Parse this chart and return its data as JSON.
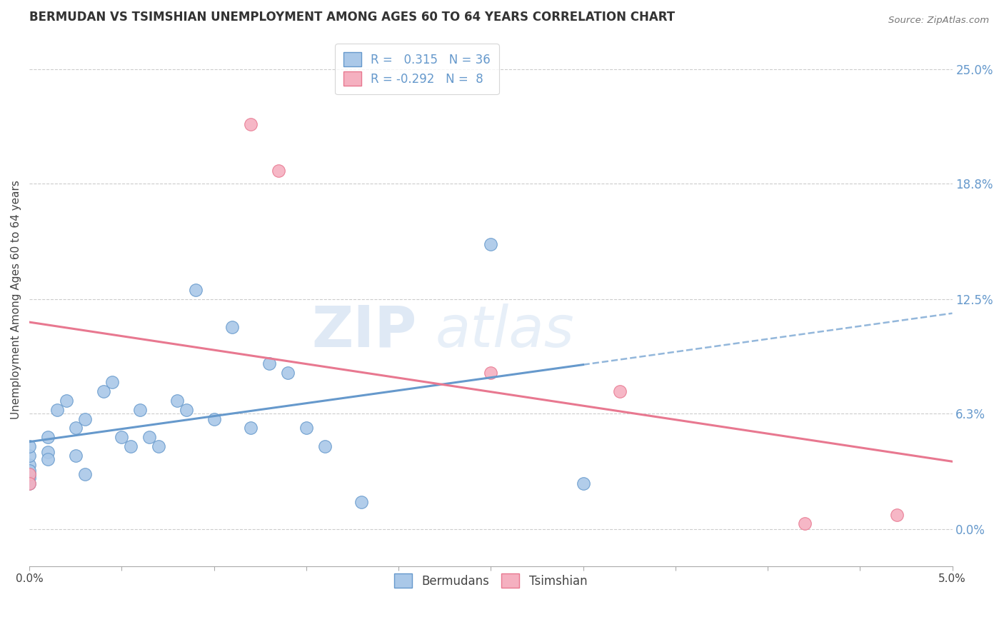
{
  "title": "BERMUDAN VS TSIMSHIAN UNEMPLOYMENT AMONG AGES 60 TO 64 YEARS CORRELATION CHART",
  "source": "Source: ZipAtlas.com",
  "ylabel": "Unemployment Among Ages 60 to 64 years",
  "ytick_values": [
    0.0,
    6.3,
    12.5,
    18.8,
    25.0
  ],
  "xmin": 0.0,
  "xmax": 5.0,
  "ymin": -2.0,
  "ymax": 27.0,
  "bermudans_x": [
    0.0,
    0.0,
    0.0,
    0.0,
    0.0,
    0.0,
    0.0,
    0.1,
    0.1,
    0.1,
    0.15,
    0.2,
    0.25,
    0.25,
    0.3,
    0.3,
    0.4,
    0.45,
    0.5,
    0.55,
    0.6,
    0.65,
    0.7,
    0.8,
    0.85,
    0.9,
    1.0,
    1.1,
    1.2,
    1.3,
    1.4,
    1.5,
    1.6,
    1.8,
    2.5,
    3.0
  ],
  "bermudans_y": [
    3.5,
    3.0,
    2.8,
    4.0,
    3.2,
    2.5,
    4.5,
    5.0,
    4.2,
    3.8,
    6.5,
    7.0,
    5.5,
    4.0,
    6.0,
    3.0,
    7.5,
    8.0,
    5.0,
    4.5,
    6.5,
    5.0,
    4.5,
    7.0,
    6.5,
    13.0,
    6.0,
    11.0,
    5.5,
    9.0,
    8.5,
    5.5,
    4.5,
    1.5,
    15.5,
    2.5
  ],
  "tsimshian_x": [
    0.0,
    0.0,
    1.2,
    1.35,
    2.5,
    3.2,
    4.2,
    4.7
  ],
  "tsimshian_y": [
    3.0,
    2.5,
    22.0,
    19.5,
    8.5,
    7.5,
    0.3,
    0.8
  ],
  "bermudans_color": "#aac8e8",
  "tsimshian_color": "#f5b0c0",
  "bermudans_line_color": "#6699cc",
  "tsimshian_line_color": "#e87890",
  "bermudans_R": 0.315,
  "bermudans_N": 36,
  "tsimshian_R": -0.292,
  "tsimshian_N": 8,
  "legend_label_bermudans": "Bermudans",
  "legend_label_tsimshian": "Tsimshian",
  "watermark_zip": "ZIP",
  "watermark_atlas": "atlas",
  "background_color": "#ffffff",
  "grid_color": "#cccccc"
}
